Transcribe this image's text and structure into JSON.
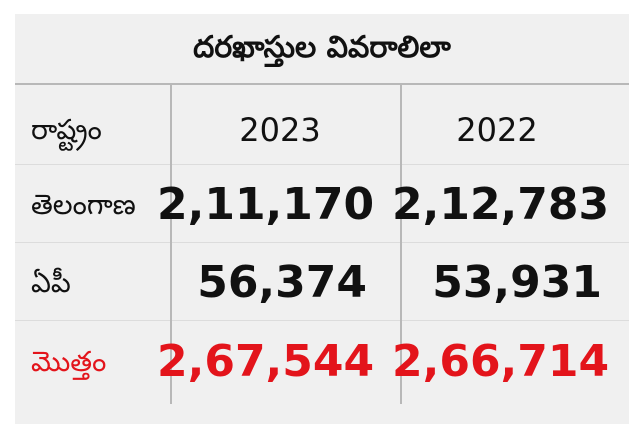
{
  "header": {
    "title": "దరఖాస్తుల వివరాలిలా"
  },
  "table": {
    "columns": [
      "రాష్ట్రం",
      "2023",
      "2022"
    ],
    "rows": [
      [
        "తెలంగాణ",
        "2,11,170",
        "2,12,783"
      ],
      [
        "ఏపీ",
        "56,374",
        "53,931"
      ],
      [
        "మొత్తం",
        "2,67,544",
        "2,66,714"
      ]
    ]
  }
}
